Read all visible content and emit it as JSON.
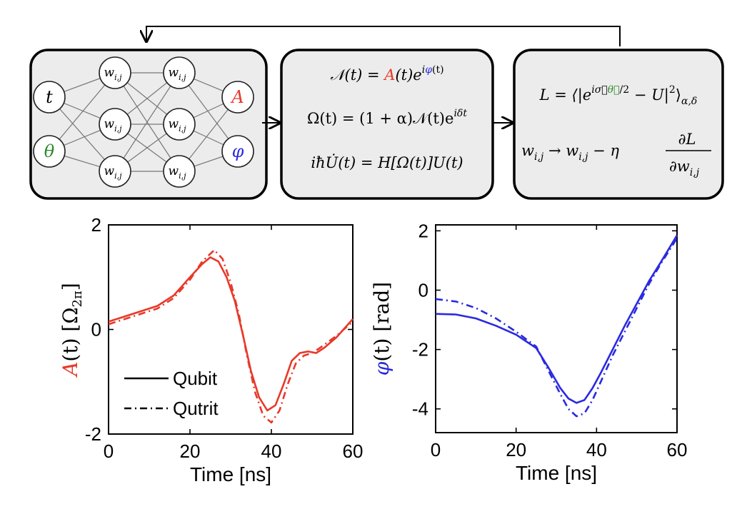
{
  "nn": {
    "inputs": [
      "t",
      "θ"
    ],
    "hidden_label_base": "w",
    "hidden_label_sub": "i,j",
    "outputs": [
      "A",
      "φ"
    ],
    "colors": {
      "theta": "#2a8a2a",
      "A": "#e8392a",
      "phi": "#2a2ae0"
    }
  },
  "equations": {
    "pulse": {
      "lhs": "𝒩(t) = ",
      "amp": "A",
      "mid": "(t)e",
      "sup_i": "i",
      "sup_phi": "φ",
      "sup_t": "(t)"
    },
    "omega": {
      "text": "Ω(t) = (1 + α)𝒩(t)e",
      "sup": "iδt"
    },
    "schrodinger": {
      "text": "iħU̇(t) = H[Ω(t)]U(t)"
    },
    "loss": {
      "pre": "L = ⟨|e",
      "sup_a": "iσ⃗",
      "sup_theta": "θ⃗",
      "sup_b": "/2",
      "post": " − U|",
      "sq": "2",
      "close": "⟩",
      "sub": "α,δ"
    },
    "update": {
      "lhs": "w",
      "lhs_sub": "i,j",
      "arrow": " → w",
      "mid_sub": "i,j",
      "minus": " − η",
      "num": "∂L",
      "den": "∂w",
      "den_sub": "i,j"
    }
  },
  "chart_data": [
    {
      "type": "line",
      "ylabel_parts": {
        "A": "A",
        "rest": "(t) [Ω",
        "sub": "2π",
        "close": "]"
      },
      "xlabel": "Time [ns]",
      "xlim": [
        0,
        60
      ],
      "ylim": [
        -2,
        2
      ],
      "xticks": [
        "0",
        "20",
        "40",
        "60"
      ],
      "yticks": [
        "2",
        "0",
        "-2"
      ],
      "legend_position": "bottom-left",
      "color": "#e8392a",
      "series": [
        {
          "name": "Qubit",
          "style": "solid",
          "x": [
            0,
            4,
            8,
            12,
            16,
            20,
            23,
            25,
            27,
            29,
            31,
            33,
            35,
            37,
            39,
            41,
            43,
            45,
            47,
            49,
            51,
            53,
            56,
            60
          ],
          "y": [
            0.15,
            0.25,
            0.35,
            0.45,
            0.65,
            1.0,
            1.25,
            1.38,
            1.3,
            1.0,
            0.55,
            -0.1,
            -0.8,
            -1.3,
            -1.55,
            -1.45,
            -1.05,
            -0.6,
            -0.45,
            -0.42,
            -0.45,
            -0.35,
            -0.15,
            0.2
          ]
        },
        {
          "name": "Qutrit",
          "style": "dashdot",
          "x": [
            0,
            4,
            8,
            12,
            16,
            20,
            23,
            26,
            28,
            30,
            32,
            34,
            36,
            38,
            40,
            42,
            44,
            46,
            48,
            50,
            52,
            56,
            60
          ],
          "y": [
            0.1,
            0.2,
            0.3,
            0.4,
            0.6,
            0.95,
            1.3,
            1.52,
            1.35,
            0.9,
            0.3,
            -0.5,
            -1.2,
            -1.65,
            -1.78,
            -1.55,
            -1.05,
            -0.65,
            -0.5,
            -0.45,
            -0.35,
            -0.12,
            0.15
          ]
        }
      ]
    },
    {
      "type": "line",
      "ylabel_parts": {
        "phi": "φ",
        "rest": "(t) [rad]"
      },
      "xlabel": "Time [ns]",
      "xlim": [
        0,
        60
      ],
      "ylim": [
        -4.8,
        2.2
      ],
      "xticks": [
        "0",
        "20",
        "40",
        "60"
      ],
      "yticks": [
        "2",
        "0",
        "-2",
        "-4"
      ],
      "color": "#2a2ae0",
      "series": [
        {
          "name": "Qubit",
          "style": "solid",
          "x": [
            0,
            5,
            10,
            15,
            20,
            25,
            28,
            31,
            33,
            35,
            37,
            39,
            41,
            44,
            47,
            50,
            53,
            56,
            60
          ],
          "y": [
            -0.8,
            -0.82,
            -0.95,
            -1.2,
            -1.5,
            -1.95,
            -2.6,
            -3.3,
            -3.65,
            -3.8,
            -3.7,
            -3.3,
            -2.8,
            -2.0,
            -1.2,
            -0.45,
            0.3,
            0.95,
            1.85
          ]
        },
        {
          "name": "Qutrit",
          "style": "dashdot",
          "x": [
            0,
            5,
            10,
            15,
            20,
            25,
            28,
            31,
            33,
            35,
            37,
            39,
            41,
            44,
            47,
            50,
            53,
            56,
            60
          ],
          "y": [
            -0.3,
            -0.38,
            -0.6,
            -0.95,
            -1.4,
            -1.9,
            -2.7,
            -3.5,
            -4.0,
            -4.25,
            -4.15,
            -3.7,
            -3.1,
            -2.2,
            -1.4,
            -0.6,
            0.2,
            0.9,
            1.75
          ]
        }
      ]
    }
  ]
}
